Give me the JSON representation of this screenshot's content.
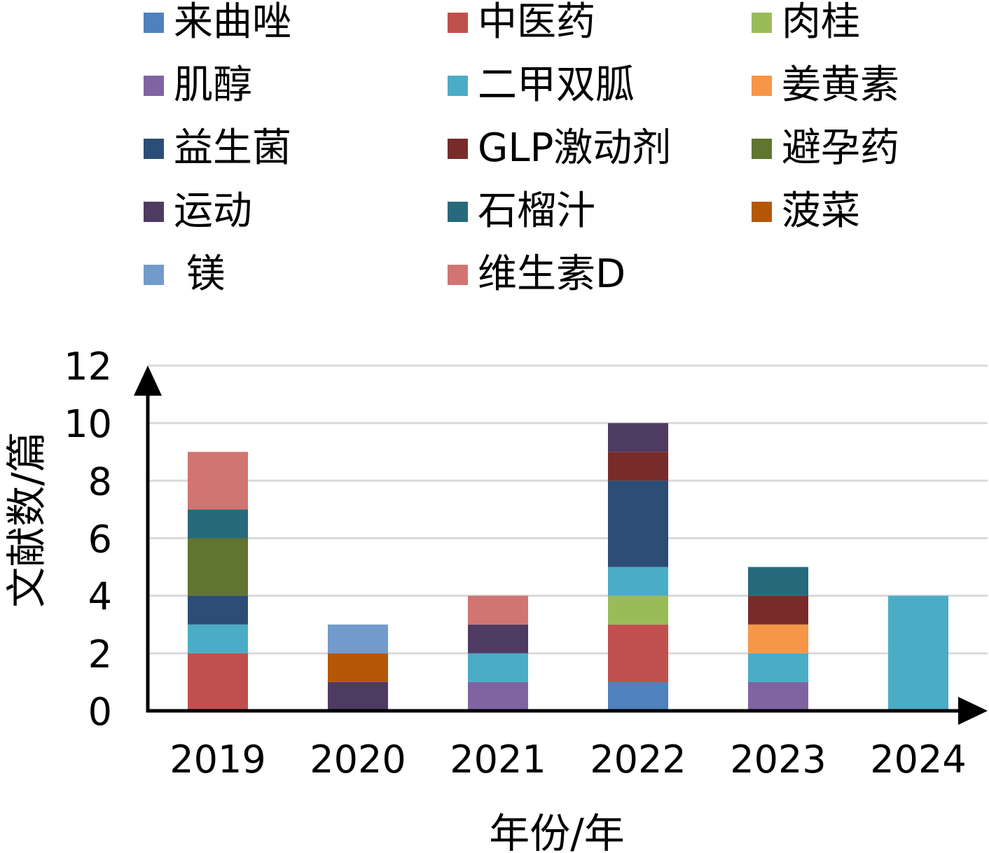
{
  "chart_data": {
    "type": "bar",
    "stacked": true,
    "categories": [
      "2019",
      "2020",
      "2021",
      "2022",
      "2023",
      "2024"
    ],
    "xlabel": "年份/年",
    "ylabel": "文献数/篇",
    "ylim": [
      0,
      12
    ],
    "yticks": [
      0,
      2,
      4,
      6,
      8,
      10,
      12
    ],
    "grid": true,
    "legend_position": "top",
    "series": [
      {
        "name": "来曲唑",
        "color": "#4F81BD",
        "values": [
          0,
          0,
          0,
          1,
          0,
          0
        ]
      },
      {
        "name": "中医药",
        "color": "#C0504D",
        "values": [
          2,
          0,
          0,
          2,
          0,
          0
        ]
      },
      {
        "name": "肉桂",
        "color": "#9BBB59",
        "values": [
          0,
          0,
          0,
          1,
          0,
          0
        ]
      },
      {
        "name": "肌醇",
        "color": "#8064A2",
        "values": [
          0,
          0,
          1,
          0,
          1,
          0
        ]
      },
      {
        "name": "二甲双胍",
        "color": "#4BACC6",
        "values": [
          1,
          0,
          1,
          1,
          1,
          4
        ]
      },
      {
        "name": "姜黄素",
        "color": "#F79646",
        "values": [
          0,
          0,
          0,
          0,
          1,
          0
        ]
      },
      {
        "name": "益生菌",
        "color": "#2C4D75",
        "values": [
          1,
          0,
          0,
          3,
          0,
          0
        ]
      },
      {
        "name": "GLP激动剂",
        "color": "#772C2A",
        "values": [
          0,
          0,
          0,
          1,
          1,
          0
        ]
      },
      {
        "name": "避孕药",
        "color": "#5F7530",
        "values": [
          2,
          0,
          0,
          0,
          0,
          0
        ]
      },
      {
        "name": "运动",
        "color": "#4D3B62",
        "values": [
          0,
          1,
          1,
          1,
          0,
          0
        ]
      },
      {
        "name": "石榴汁",
        "color": "#276A7C",
        "values": [
          1,
          0,
          0,
          0,
          1,
          0
        ]
      },
      {
        "name": "菠菜",
        "color": "#B65708",
        "values": [
          0,
          1,
          0,
          0,
          0,
          0
        ]
      },
      {
        "name": " 镁",
        "color": "#729ACA",
        "values": [
          0,
          1,
          0,
          0,
          0,
          0
        ]
      },
      {
        "name": "维生素D",
        "color": "#D07571",
        "values": [
          2,
          0,
          1,
          0,
          0,
          0
        ]
      }
    ]
  }
}
